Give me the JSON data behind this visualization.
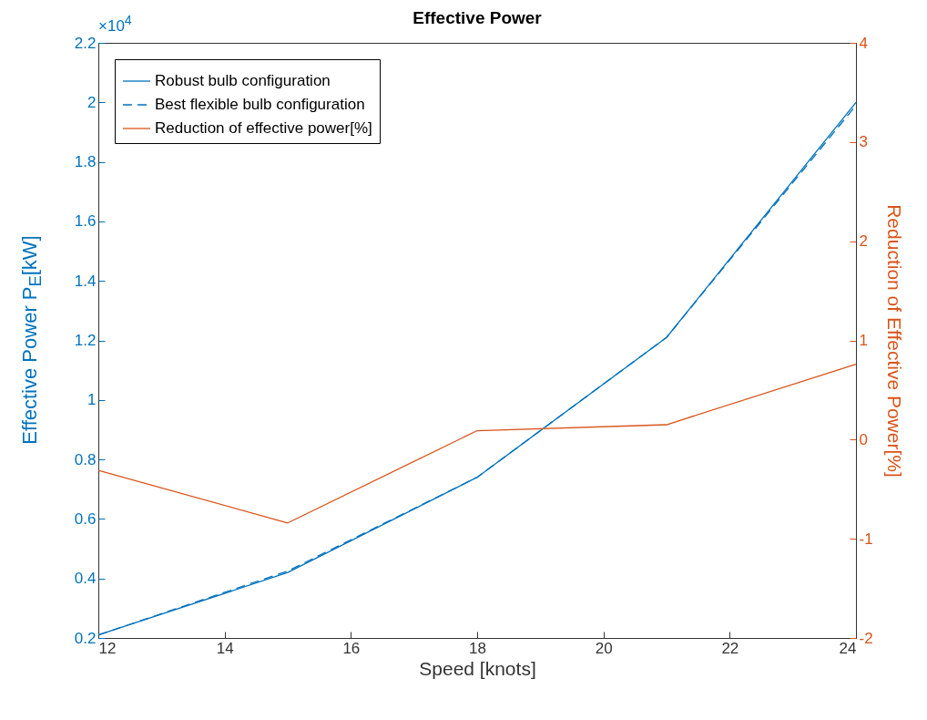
{
  "chart_data": {
    "type": "line",
    "title": "Effective Power",
    "xlabel": "Speed [knots]",
    "ylabel": "Effective Power P$_{E}$[kW]",
    "y2label": "Reduction of Effective Power[%]",
    "annotations": [
      "×10$^{4}$"
    ],
    "x": [
      12,
      15,
      18,
      21,
      24
    ],
    "series": [
      {
        "name": "Robust bulb configuration",
        "color": "#0072bd",
        "line_style": "solid",
        "values": [
          0.21,
          0.42,
          0.74,
          1.21,
          2.0
        ]
      },
      {
        "name": "Best flexible bulb configuration",
        "color": "#0072bd",
        "line_style": "dashed",
        "values": [
          0.21,
          0.425,
          0.74,
          1.21,
          1.99
        ]
      },
      {
        "name": "Reduction of effective power[%]",
        "color": "#d95319",
        "line_style": "solid",
        "axis": "y2",
        "values": [
          -0.31,
          -0.84,
          0.09,
          0.15,
          0.76
        ]
      }
    ],
    "xlim": [
      12,
      24
    ],
    "xticks": [
      12,
      14,
      16,
      18,
      20,
      22,
      24
    ],
    "ylim": [
      0.2,
      2.2
    ],
    "yticks": [
      0.2,
      0.4,
      0.6,
      0.8,
      1,
      1.2,
      1.4,
      1.6,
      1.8,
      2,
      2.2
    ],
    "y2lim": [
      -2,
      4
    ],
    "y2ticks": [
      -2,
      -1,
      0,
      1,
      2,
      3,
      4
    ],
    "grid": false,
    "legend": "top left",
    "marker": "none"
  }
}
